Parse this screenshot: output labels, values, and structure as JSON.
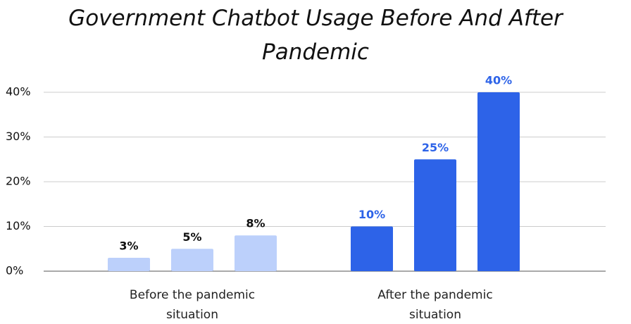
{
  "chart_data": {
    "type": "grouped_bar",
    "title": "Government Chatbot Usage Before And After Pandemic",
    "categories": [
      "Before the pandemic situation",
      "After the pandemic situation"
    ],
    "values": [
      [
        3,
        5,
        8
      ],
      [
        10,
        25,
        40
      ]
    ],
    "value_labels": [
      [
        "3%",
        "5%",
        "8%"
      ],
      [
        "10%",
        "25%",
        "40%"
      ]
    ],
    "colors": [
      "#bcd0fb",
      "#2d63e8"
    ],
    "label_colors": [
      "#111111",
      "#2d63e8"
    ],
    "ylim": [
      0,
      40
    ],
    "yticks": [
      {
        "value": 0,
        "label": "0%"
      },
      {
        "value": 10,
        "label": "10%"
      },
      {
        "value": 20,
        "label": "20%"
      },
      {
        "value": 30,
        "label": "30%"
      },
      {
        "value": 40,
        "label": "40%"
      }
    ],
    "grid": true
  }
}
